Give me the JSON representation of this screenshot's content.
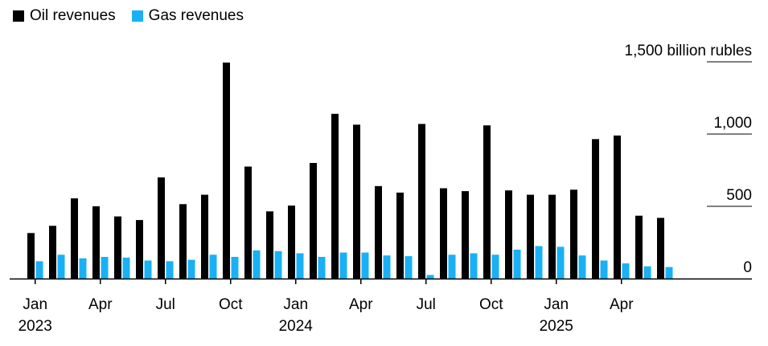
{
  "legend": {
    "items": [
      {
        "label": "Oil revenues",
        "color": "#000000"
      },
      {
        "label": "Gas revenues",
        "color": "#1ab0f5"
      }
    ]
  },
  "chart_data": {
    "type": "bar",
    "title": "",
    "xlabel": "",
    "ylabel": "",
    "ylim": [
      0,
      1500
    ],
    "y_ticks": [
      {
        "value": 1500,
        "label": "1,500 billion rubles"
      },
      {
        "value": 1000,
        "label": "1,000"
      },
      {
        "value": 500,
        "label": "500"
      },
      {
        "value": 0,
        "label": "0"
      }
    ],
    "categories": [
      "Jan 2023",
      "Feb 2023",
      "Mar 2023",
      "Apr 2023",
      "May 2023",
      "Jun 2023",
      "Jul 2023",
      "Aug 2023",
      "Sep 2023",
      "Oct 2023",
      "Nov 2023",
      "Dec 2023",
      "Jan 2024",
      "Feb 2024",
      "Mar 2024",
      "Apr 2024",
      "May 2024",
      "Jun 2024",
      "Jul 2024",
      "Aug 2024",
      "Sep 2024",
      "Oct 2024",
      "Nov 2024",
      "Dec 2024",
      "Jan 2025",
      "Feb 2025",
      "Mar 2025",
      "Apr 2025",
      "May 2025",
      "Jun 2025"
    ],
    "x_tick_labels": [
      {
        "index": 0,
        "month": "Jan",
        "year": "2023"
      },
      {
        "index": 3,
        "month": "Apr",
        "year": ""
      },
      {
        "index": 6,
        "month": "Jul",
        "year": ""
      },
      {
        "index": 9,
        "month": "Oct",
        "year": ""
      },
      {
        "index": 12,
        "month": "Jan",
        "year": "2024"
      },
      {
        "index": 15,
        "month": "Apr",
        "year": ""
      },
      {
        "index": 18,
        "month": "Jul",
        "year": ""
      },
      {
        "index": 21,
        "month": "Oct",
        "year": ""
      },
      {
        "index": 24,
        "month": "Jan",
        "year": "2025"
      },
      {
        "index": 27,
        "month": "Apr",
        "year": ""
      }
    ],
    "series": [
      {
        "name": "Oil revenues",
        "color": "#000000",
        "values": [
          315,
          365,
          555,
          500,
          430,
          405,
          700,
          515,
          580,
          1495,
          775,
          465,
          505,
          800,
          1140,
          1065,
          640,
          595,
          1070,
          625,
          605,
          1060,
          610,
          580,
          580,
          615,
          965,
          990,
          435,
          420
        ]
      },
      {
        "name": "Gas revenues",
        "color": "#1ab0f5",
        "values": [
          120,
          165,
          140,
          150,
          145,
          125,
          120,
          130,
          165,
          150,
          195,
          190,
          175,
          150,
          180,
          180,
          160,
          155,
          25,
          165,
          175,
          165,
          200,
          225,
          220,
          160,
          125,
          105,
          85,
          80
        ]
      }
    ]
  }
}
